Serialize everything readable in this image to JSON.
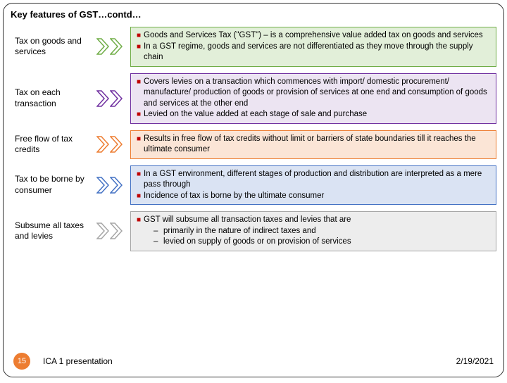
{
  "title": "Key features of GST…contd…",
  "colors": {
    "bullet": "#c00000",
    "pagenum_bg": "#ed7d31",
    "arrow_fill": "#ffffff"
  },
  "rows": [
    {
      "label": "Tax on goods and services",
      "arrow_stroke": "#70ad47",
      "box_border": "#70ad47",
      "box_fill": "#e2efd9",
      "bullets": [
        "Goods and Services Tax (\"GST\") – is a comprehensive value added tax on goods and services",
        "In a GST regime, goods and services are not differentiated as they move through the supply chain"
      ]
    },
    {
      "label": "Tax on each transaction",
      "arrow_stroke": "#7030a0",
      "box_border": "#7030a0",
      "box_fill": "#ece4f2",
      "bullets": [
        "Covers levies on a transaction which commences with import/ domestic procurement/ manufacture/ production of goods or provision of services at one end and consumption of goods and services at the other end",
        "Levied on the value added at each stage of sale and purchase"
      ]
    },
    {
      "label": "Free flow of tax credits",
      "arrow_stroke": "#ed7d31",
      "box_border": "#ed7d31",
      "box_fill": "#fbe5d6",
      "bullets": [
        "Results in free flow of tax credits without limit or barriers of state boundaries till it reaches the ultimate consumer"
      ]
    },
    {
      "label": "Tax to be borne by consumer",
      "arrow_stroke": "#4472c4",
      "box_border": "#4472c4",
      "box_fill": "#dae3f3",
      "bullets": [
        "In a GST environment, different stages of production and distribution are interpreted as a mere pass through",
        "Incidence of tax is borne by the ultimate consumer"
      ]
    },
    {
      "label": "Subsume all taxes and levies",
      "arrow_stroke": "#a6a6a6",
      "box_border": "#a6a6a6",
      "box_fill": "#ededed",
      "bullets": [
        "GST will subsume all transaction taxes and levies that are"
      ],
      "sub": [
        "primarily in the nature of indirect taxes and",
        "levied on supply of goods or on provision of services"
      ]
    }
  ],
  "footer": {
    "page": "15",
    "doc": "ICA 1 presentation",
    "date": "2/19/2021"
  }
}
